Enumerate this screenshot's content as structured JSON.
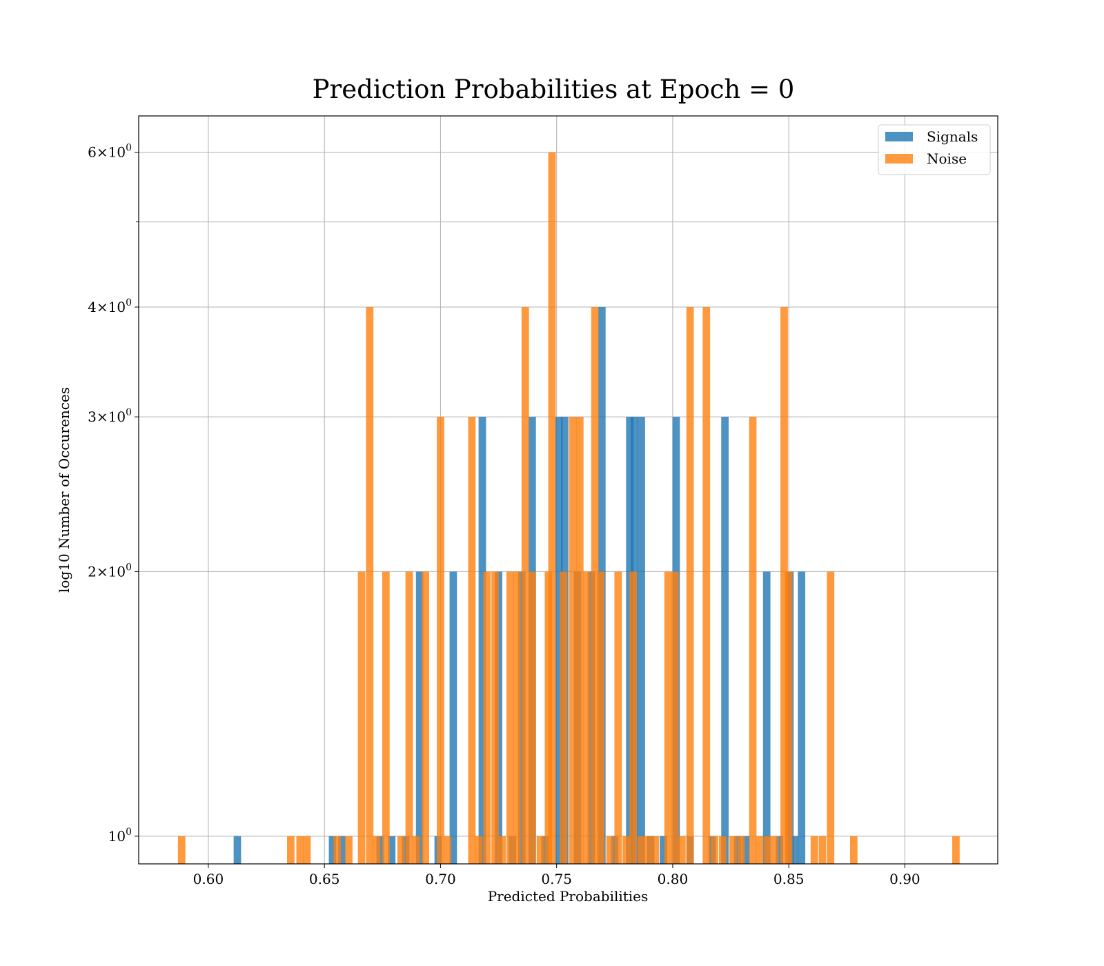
{
  "chart_data": {
    "type": "bar",
    "title": "Prediction Probabilities at Epoch = 0",
    "xlabel": "Predicted Probabilities",
    "ylabel": "log10 Number of Occurences",
    "xlim": [
      0.57,
      0.94
    ],
    "ylim": [
      0.93,
      6.6
    ],
    "yscale": "log",
    "grid": true,
    "legend_position": "top-right",
    "x_ticks": [
      {
        "value": 0.6,
        "label": "0.60"
      },
      {
        "value": 0.65,
        "label": "0.65"
      },
      {
        "value": 0.7,
        "label": "0.70"
      },
      {
        "value": 0.75,
        "label": "0.75"
      },
      {
        "value": 0.8,
        "label": "0.80"
      },
      {
        "value": 0.85,
        "label": "0.85"
      },
      {
        "value": 0.9,
        "label": "0.90"
      }
    ],
    "y_ticks": [
      {
        "value": 1,
        "base": "10",
        "exp": "0",
        "coef": ""
      },
      {
        "value": 2,
        "base": "10",
        "exp": "0",
        "coef": "2"
      },
      {
        "value": 3,
        "base": "10",
        "exp": "0",
        "coef": "3"
      },
      {
        "value": 4,
        "base": "10",
        "exp": "0",
        "coef": "4"
      },
      {
        "value": 6,
        "base": "10",
        "exp": "0",
        "coef": "6"
      }
    ],
    "y_minor_ticks": [
      5
    ],
    "bar_width": 0.0032,
    "series": [
      {
        "name": "Signals",
        "color": "#1f77b4",
        "opacity": 0.8,
        "bars": [
          {
            "x": 0.6125,
            "y": 1
          },
          {
            "x": 0.6535,
            "y": 1
          },
          {
            "x": 0.6575,
            "y": 1
          },
          {
            "x": 0.674,
            "y": 1
          },
          {
            "x": 0.679,
            "y": 1
          },
          {
            "x": 0.685,
            "y": 1
          },
          {
            "x": 0.691,
            "y": 2
          },
          {
            "x": 0.699,
            "y": 1
          },
          {
            "x": 0.7055,
            "y": 2
          },
          {
            "x": 0.718,
            "y": 3
          },
          {
            "x": 0.725,
            "y": 2
          },
          {
            "x": 0.731,
            "y": 1
          },
          {
            "x": 0.735,
            "y": 2
          },
          {
            "x": 0.7395,
            "y": 3
          },
          {
            "x": 0.745,
            "y": 1
          },
          {
            "x": 0.751,
            "y": 3
          },
          {
            "x": 0.7535,
            "y": 3
          },
          {
            "x": 0.759,
            "y": 2
          },
          {
            "x": 0.765,
            "y": 2
          },
          {
            "x": 0.7695,
            "y": 4
          },
          {
            "x": 0.775,
            "y": 1
          },
          {
            "x": 0.7815,
            "y": 3
          },
          {
            "x": 0.7835,
            "y": 3
          },
          {
            "x": 0.7865,
            "y": 3
          },
          {
            "x": 0.7905,
            "y": 1
          },
          {
            "x": 0.796,
            "y": 1
          },
          {
            "x": 0.8015,
            "y": 3
          },
          {
            "x": 0.8075,
            "y": 1
          },
          {
            "x": 0.817,
            "y": 1
          },
          {
            "x": 0.8225,
            "y": 3
          },
          {
            "x": 0.828,
            "y": 1
          },
          {
            "x": 0.8315,
            "y": 1
          },
          {
            "x": 0.8405,
            "y": 2
          },
          {
            "x": 0.846,
            "y": 1
          },
          {
            "x": 0.8505,
            "y": 2
          },
          {
            "x": 0.8525,
            "y": 1
          },
          {
            "x": 0.8555,
            "y": 2
          }
        ]
      },
      {
        "name": "Noise",
        "color": "#ff7f0e",
        "opacity": 0.8,
        "bars": [
          {
            "x": 0.5885,
            "y": 1
          },
          {
            "x": 0.6355,
            "y": 1
          },
          {
            "x": 0.6395,
            "y": 1
          },
          {
            "x": 0.6425,
            "y": 1
          },
          {
            "x": 0.6555,
            "y": 1
          },
          {
            "x": 0.6605,
            "y": 1
          },
          {
            "x": 0.666,
            "y": 2
          },
          {
            "x": 0.6695,
            "y": 4
          },
          {
            "x": 0.6725,
            "y": 1
          },
          {
            "x": 0.6765,
            "y": 2
          },
          {
            "x": 0.683,
            "y": 1
          },
          {
            "x": 0.6865,
            "y": 2
          },
          {
            "x": 0.6895,
            "y": 1
          },
          {
            "x": 0.6935,
            "y": 2
          },
          {
            "x": 0.7,
            "y": 3
          },
          {
            "x": 0.703,
            "y": 1
          },
          {
            "x": 0.7135,
            "y": 3
          },
          {
            "x": 0.7165,
            "y": 1
          },
          {
            "x": 0.72,
            "y": 2
          },
          {
            "x": 0.7235,
            "y": 2
          },
          {
            "x": 0.7265,
            "y": 1
          },
          {
            "x": 0.73,
            "y": 2
          },
          {
            "x": 0.733,
            "y": 2
          },
          {
            "x": 0.7365,
            "y": 4
          },
          {
            "x": 0.7395,
            "y": 2
          },
          {
            "x": 0.743,
            "y": 1
          },
          {
            "x": 0.7465,
            "y": 2
          },
          {
            "x": 0.748,
            "y": 6
          },
          {
            "x": 0.753,
            "y": 2
          },
          {
            "x": 0.757,
            "y": 3
          },
          {
            "x": 0.76,
            "y": 3
          },
          {
            "x": 0.763,
            "y": 2
          },
          {
            "x": 0.7665,
            "y": 4
          },
          {
            "x": 0.769,
            "y": 2
          },
          {
            "x": 0.773,
            "y": 1
          },
          {
            "x": 0.7765,
            "y": 2
          },
          {
            "x": 0.78,
            "y": 1
          },
          {
            "x": 0.783,
            "y": 2
          },
          {
            "x": 0.7865,
            "y": 1
          },
          {
            "x": 0.7895,
            "y": 1
          },
          {
            "x": 0.7925,
            "y": 1
          },
          {
            "x": 0.798,
            "y": 2
          },
          {
            "x": 0.801,
            "y": 2
          },
          {
            "x": 0.804,
            "y": 1
          },
          {
            "x": 0.8075,
            "y": 4
          },
          {
            "x": 0.8145,
            "y": 4
          },
          {
            "x": 0.818,
            "y": 1
          },
          {
            "x": 0.8215,
            "y": 1
          },
          {
            "x": 0.826,
            "y": 1
          },
          {
            "x": 0.8295,
            "y": 1
          },
          {
            "x": 0.8345,
            "y": 3
          },
          {
            "x": 0.8375,
            "y": 1
          },
          {
            "x": 0.841,
            "y": 1
          },
          {
            "x": 0.844,
            "y": 1
          },
          {
            "x": 0.848,
            "y": 4
          },
          {
            "x": 0.85,
            "y": 2
          },
          {
            "x": 0.861,
            "y": 1
          },
          {
            "x": 0.8645,
            "y": 1
          },
          {
            "x": 0.868,
            "y": 2
          },
          {
            "x": 0.878,
            "y": 1
          },
          {
            "x": 0.922,
            "y": 1
          }
        ]
      }
    ]
  }
}
